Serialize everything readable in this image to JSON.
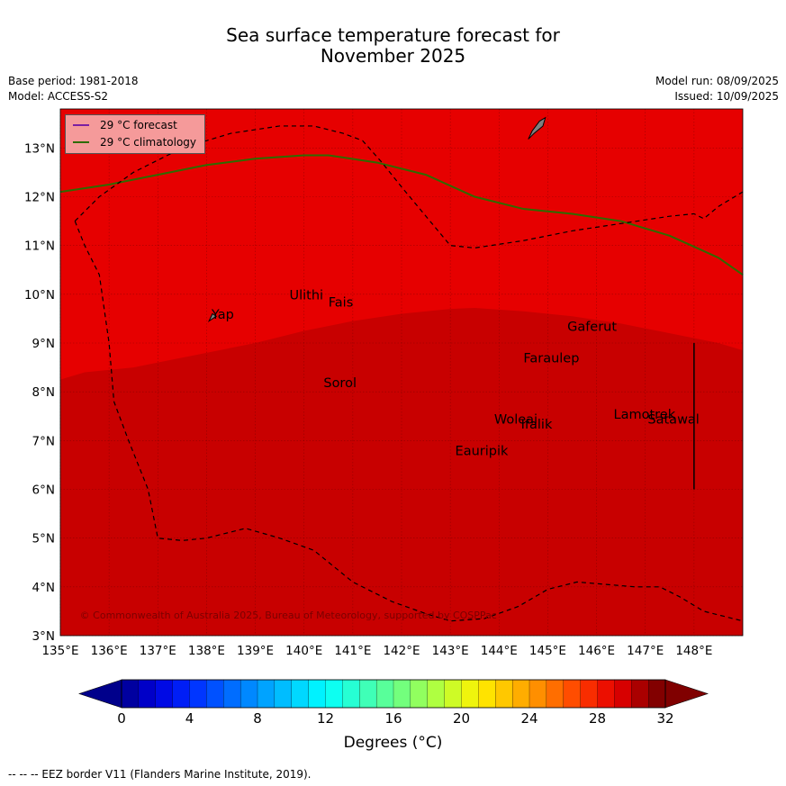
{
  "title_line1": "Sea surface temperature forecast for",
  "title_line2": "November 2025",
  "meta": {
    "base_period": "Base period: 1981-2018",
    "model": "Model: ACCESS-S2",
    "model_run": "Model run: 08/09/2025",
    "issued": "Issued: 10/09/2025"
  },
  "legend": [
    {
      "label": "29 °C  forecast",
      "color": "#7b1fa2"
    },
    {
      "label": "29 °C  climatology",
      "color": "#2e6b00"
    }
  ],
  "colors": {
    "warm_zone": "#e60000",
    "hot_zone": "#c80000",
    "land": "#808080",
    "eez_border": "#000000"
  },
  "lon_labels": [
    "135°E",
    "136°E",
    "137°E",
    "138°E",
    "139°E",
    "140°E",
    "141°E",
    "142°E",
    "143°E",
    "144°E",
    "145°E",
    "146°E",
    "147°E",
    "148°E"
  ],
  "lat_labels": [
    "3°N",
    "4°N",
    "5°N",
    "6°N",
    "7°N",
    "8°N",
    "9°N",
    "10°N",
    "11°N",
    "12°N",
    "13°N"
  ],
  "places": [
    {
      "name": "Yap",
      "lon": 138.1,
      "lat": 9.5
    },
    {
      "name": "Ulithi",
      "lon": 139.7,
      "lat": 9.9
    },
    {
      "name": "Fais",
      "lon": 140.5,
      "lat": 9.75
    },
    {
      "name": "Sorol",
      "lon": 140.4,
      "lat": 8.1
    },
    {
      "name": "Gaferut",
      "lon": 145.4,
      "lat": 9.25
    },
    {
      "name": "Faraulep",
      "lon": 144.5,
      "lat": 8.6
    },
    {
      "name": "Woleai",
      "lon": 143.9,
      "lat": 7.35
    },
    {
      "name": "Ifalik",
      "lon": 144.45,
      "lat": 7.25
    },
    {
      "name": "Lamotrek",
      "lon": 146.35,
      "lat": 7.45
    },
    {
      "name": "Satawal",
      "lon": 147.05,
      "lat": 7.35
    },
    {
      "name": "Eauripik",
      "lon": 143.1,
      "lat": 6.7
    }
  ],
  "copyright": "© Commonwealth of Australia 2025, Bureau of Meteorology, supported by COSPPac",
  "colorbar": {
    "ticks": [
      "0",
      "4",
      "8",
      "12",
      "16",
      "20",
      "24",
      "28",
      "32"
    ],
    "label": "Degrees (°C)"
  },
  "footer": "--  --  -- EEZ border V11 (Flanders Marine Institute, 2019)."
}
